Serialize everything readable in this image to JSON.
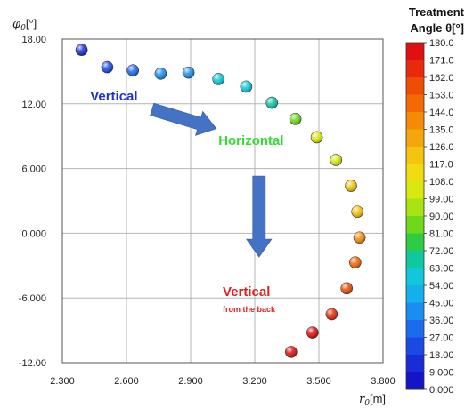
{
  "chart_data": {
    "type": "scatter",
    "xlabel": "r",
    "xlabel_sub": "0",
    "xlabel_unit": "[m]",
    "ylabel": "φ",
    "ylabel_sub": "0",
    "ylabel_unit": "[°]",
    "xlim": [
      2.3,
      3.8
    ],
    "ylim": [
      -12.0,
      18.0
    ],
    "xticks": [
      "2.300",
      "2.600",
      "2.900",
      "3.200",
      "3.500",
      "3.800"
    ],
    "yticks": [
      "18.00",
      "12.00",
      "6.000",
      "0.000",
      "-6.000",
      "-12.00"
    ],
    "grid": true,
    "points": [
      {
        "x": 2.39,
        "y": 17.0,
        "theta": 10
      },
      {
        "x": 2.51,
        "y": 15.4,
        "theta": 20
      },
      {
        "x": 2.63,
        "y": 15.1,
        "theta": 30
      },
      {
        "x": 2.76,
        "y": 14.8,
        "theta": 40
      },
      {
        "x": 2.89,
        "y": 14.9,
        "theta": 45
      },
      {
        "x": 3.03,
        "y": 14.3,
        "theta": 55
      },
      {
        "x": 3.16,
        "y": 13.6,
        "theta": 62
      },
      {
        "x": 3.28,
        "y": 12.1,
        "theta": 72
      },
      {
        "x": 3.39,
        "y": 10.6,
        "theta": 85
      },
      {
        "x": 3.49,
        "y": 8.9,
        "theta": 100
      },
      {
        "x": 3.58,
        "y": 6.8,
        "theta": 108
      },
      {
        "x": 3.65,
        "y": 4.4,
        "theta": 118
      },
      {
        "x": 3.68,
        "y": 2.0,
        "theta": 126
      },
      {
        "x": 3.69,
        "y": -0.4,
        "theta": 140
      },
      {
        "x": 3.67,
        "y": -2.7,
        "theta": 148
      },
      {
        "x": 3.63,
        "y": -5.1,
        "theta": 157
      },
      {
        "x": 3.56,
        "y": -7.5,
        "theta": 165
      },
      {
        "x": 3.47,
        "y": -9.2,
        "theta": 173
      },
      {
        "x": 3.37,
        "y": -11.0,
        "theta": 180
      }
    ],
    "annotations": [
      {
        "text": "Vertical",
        "x": 2.43,
        "y": 12.3,
        "color": "#2233cc",
        "size": 15
      },
      {
        "text": "Horizontal",
        "x": 3.03,
        "y": 8.2,
        "color": "#33dd33",
        "size": 15
      },
      {
        "text": "Vertical",
        "x": 3.05,
        "y": -5.8,
        "color": "#e02020",
        "size": 15
      },
      {
        "text": "from the back",
        "x": 3.05,
        "y": -7.3,
        "color": "#e02020",
        "size": 9
      }
    ],
    "arrows": [
      {
        "from": [
          2.72,
          11.5
        ],
        "to": [
          3.02,
          9.7
        ],
        "color": "#4472c4"
      },
      {
        "from": [
          3.22,
          5.3
        ],
        "to": [
          3.22,
          -2.2
        ],
        "color": "#4472c4"
      }
    ],
    "colorbar": {
      "title_line1": "Treatment",
      "title_line2": "Angle θ[°]",
      "ticks": [
        "180.0",
        "171.0",
        "162.0",
        "153.0",
        "144.0",
        "135.0",
        "126.0",
        "117.0",
        "108.0",
        "99.00",
        "90.00",
        "81.00",
        "72.00",
        "63.00",
        "54.00",
        "45.00",
        "36.00",
        "27.00",
        "18.00",
        "9.000",
        "0.000"
      ],
      "colors": [
        "#e01010",
        "#e82a0a",
        "#ef4c08",
        "#f26a06",
        "#f48a06",
        "#f5a60a",
        "#f5c40e",
        "#f0dc10",
        "#d8e810",
        "#a8e414",
        "#6ed81a",
        "#2ecc44",
        "#10c8a0",
        "#10c8d8",
        "#14b0ec",
        "#1a8ef0",
        "#1a6cec",
        "#1a4ae4",
        "#1a2cd8",
        "#1414c8"
      ]
    }
  }
}
